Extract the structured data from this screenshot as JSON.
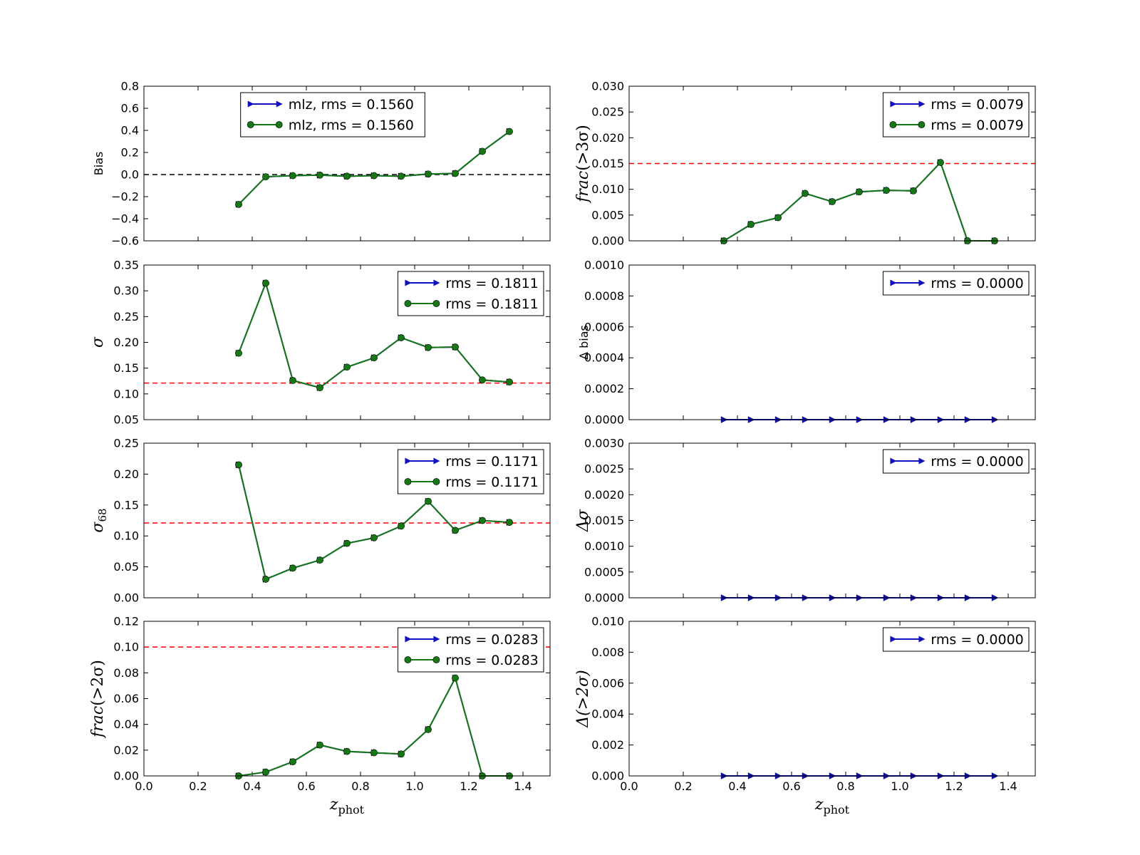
{
  "chart_data": [
    {
      "type": "line",
      "ylabel": "Bias",
      "ylim": [
        -0.6,
        0.8
      ],
      "yticks": [
        "−0.6",
        "−0.4",
        "−0.2",
        "0.0",
        "0.2",
        "0.4",
        "0.6",
        "0.8"
      ],
      "reference_line": {
        "y": 0.0,
        "color": "#000000",
        "style": "dashed"
      },
      "legend_position": "upper-center",
      "series": [
        {
          "name": "mlz, rms = 0.1560",
          "color": "#1010c0",
          "marker": "triangle-right",
          "x": [
            0.35,
            0.45,
            0.55,
            0.65,
            0.75,
            0.85,
            0.95,
            1.05,
            1.15,
            1.25,
            1.35
          ],
          "y": [
            -0.27,
            -0.02,
            -0.01,
            -0.005,
            -0.015,
            -0.01,
            -0.015,
            0.005,
            0.01,
            0.21,
            0.39
          ]
        },
        {
          "name": "mlz, rms = 0.1560",
          "color": "#157815",
          "marker": "circle",
          "x": [
            0.35,
            0.45,
            0.55,
            0.65,
            0.75,
            0.85,
            0.95,
            1.05,
            1.15,
            1.25,
            1.35
          ],
          "y": [
            -0.27,
            -0.02,
            -0.01,
            -0.005,
            -0.015,
            -0.01,
            -0.015,
            0.005,
            0.01,
            0.21,
            0.39
          ]
        }
      ]
    },
    {
      "type": "line",
      "ylabel": "frac(>3σ)",
      "ylim": [
        0.0,
        0.03
      ],
      "yticks": [
        "0.000",
        "0.005",
        "0.010",
        "0.015",
        "0.020",
        "0.025",
        "0.030"
      ],
      "reference_line": {
        "y": 0.015,
        "color": "#ff0000",
        "style": "dashed"
      },
      "legend_position": "upper-right",
      "series": [
        {
          "name": "rms = 0.0079",
          "color": "#1010c0",
          "marker": "triangle-right",
          "x": [
            0.35,
            0.45,
            0.55,
            0.65,
            0.75,
            0.85,
            0.95,
            1.05,
            1.15,
            1.25,
            1.35
          ],
          "y": [
            0.0,
            0.0032,
            0.0045,
            0.0092,
            0.0076,
            0.0095,
            0.0098,
            0.0097,
            0.0152,
            0.0,
            0.0
          ]
        },
        {
          "name": "rms = 0.0079",
          "color": "#157815",
          "marker": "circle",
          "x": [
            0.35,
            0.45,
            0.55,
            0.65,
            0.75,
            0.85,
            0.95,
            1.05,
            1.15,
            1.25,
            1.35
          ],
          "y": [
            0.0,
            0.0032,
            0.0045,
            0.0092,
            0.0076,
            0.0095,
            0.0098,
            0.0097,
            0.0152,
            0.0,
            0.0
          ]
        }
      ]
    },
    {
      "type": "line",
      "ylabel": "σ",
      "ylim": [
        0.05,
        0.35
      ],
      "yticks": [
        "0.05",
        "0.10",
        "0.15",
        "0.20",
        "0.25",
        "0.30",
        "0.35"
      ],
      "reference_line": {
        "y": 0.121,
        "color": "#ff0000",
        "style": "dashed"
      },
      "legend_position": "upper-right",
      "series": [
        {
          "name": "rms = 0.1811",
          "color": "#1010c0",
          "marker": "triangle-right",
          "x": [
            0.35,
            0.45,
            0.55,
            0.65,
            0.75,
            0.85,
            0.95,
            1.05,
            1.15,
            1.25,
            1.35
          ],
          "y": [
            0.179,
            0.315,
            0.126,
            0.112,
            0.152,
            0.17,
            0.209,
            0.19,
            0.191,
            0.127,
            0.123
          ]
        },
        {
          "name": "rms = 0.1811",
          "color": "#157815",
          "marker": "circle",
          "x": [
            0.35,
            0.45,
            0.55,
            0.65,
            0.75,
            0.85,
            0.95,
            1.05,
            1.15,
            1.25,
            1.35
          ],
          "y": [
            0.179,
            0.315,
            0.126,
            0.112,
            0.152,
            0.17,
            0.209,
            0.19,
            0.191,
            0.127,
            0.123
          ]
        }
      ]
    },
    {
      "type": "line",
      "ylabel": "Δ bias",
      "ylim": [
        0.0,
        0.001
      ],
      "yticks": [
        "0.0000",
        "0.0002",
        "0.0004",
        "0.0006",
        "0.0008",
        "0.0010"
      ],
      "legend_position": "upper-right",
      "series": [
        {
          "name": "rms = 0.0000",
          "color": "#1010c0",
          "marker": "triangle-right",
          "x": [
            0.35,
            0.45,
            0.55,
            0.65,
            0.75,
            0.85,
            0.95,
            1.05,
            1.15,
            1.25,
            1.35
          ],
          "y": [
            0,
            0,
            0,
            0,
            0,
            0,
            0,
            0,
            0,
            0,
            0
          ]
        }
      ]
    },
    {
      "type": "line",
      "ylabel": "σ68",
      "ylim": [
        0.0,
        0.25
      ],
      "yticks": [
        "0.00",
        "0.05",
        "0.10",
        "0.15",
        "0.20",
        "0.25"
      ],
      "reference_line": {
        "y": 0.121,
        "color": "#ff0000",
        "style": "dashed"
      },
      "legend_position": "upper-right",
      "series": [
        {
          "name": "rms = 0.1171",
          "color": "#1010c0",
          "marker": "triangle-right",
          "x": [
            0.35,
            0.45,
            0.55,
            0.65,
            0.75,
            0.85,
            0.95,
            1.05,
            1.15,
            1.25,
            1.35
          ],
          "y": [
            0.215,
            0.03,
            0.048,
            0.061,
            0.088,
            0.097,
            0.116,
            0.156,
            0.109,
            0.125,
            0.122
          ]
        },
        {
          "name": "rms = 0.1171",
          "color": "#157815",
          "marker": "circle",
          "x": [
            0.35,
            0.45,
            0.55,
            0.65,
            0.75,
            0.85,
            0.95,
            1.05,
            1.15,
            1.25,
            1.35
          ],
          "y": [
            0.215,
            0.03,
            0.048,
            0.061,
            0.088,
            0.097,
            0.116,
            0.156,
            0.109,
            0.125,
            0.122
          ]
        }
      ]
    },
    {
      "type": "line",
      "ylabel": "Δσ",
      "ylim": [
        0.0,
        0.003
      ],
      "yticks": [
        "0.0000",
        "0.0005",
        "0.0010",
        "0.0015",
        "0.0020",
        "0.0025",
        "0.0030"
      ],
      "legend_position": "upper-right",
      "series": [
        {
          "name": "rms = 0.0000",
          "color": "#1010c0",
          "marker": "triangle-right",
          "x": [
            0.35,
            0.45,
            0.55,
            0.65,
            0.75,
            0.85,
            0.95,
            1.05,
            1.15,
            1.25,
            1.35
          ],
          "y": [
            0,
            0,
            0,
            0,
            0,
            0,
            0,
            0,
            0,
            0,
            0
          ]
        }
      ]
    },
    {
      "type": "line",
      "ylabel": "frac(>2σ)",
      "xlabel": "zphot",
      "ylim": [
        0.0,
        0.12
      ],
      "yticks": [
        "0.00",
        "0.02",
        "0.04",
        "0.06",
        "0.08",
        "0.10",
        "0.12"
      ],
      "xticks": [
        "0.0",
        "0.2",
        "0.4",
        "0.6",
        "0.8",
        "1.0",
        "1.2",
        "1.4"
      ],
      "reference_line": {
        "y": 0.1,
        "color": "#ff0000",
        "style": "dashed"
      },
      "legend_position": "upper-right",
      "series": [
        {
          "name": "rms = 0.0283",
          "color": "#1010c0",
          "marker": "triangle-right",
          "x": [
            0.35,
            0.45,
            0.55,
            0.65,
            0.75,
            0.85,
            0.95,
            1.05,
            1.15,
            1.25,
            1.35
          ],
          "y": [
            0.0,
            0.003,
            0.011,
            0.024,
            0.019,
            0.018,
            0.017,
            0.036,
            0.076,
            0.0,
            0.0
          ]
        },
        {
          "name": "rms = 0.0283",
          "color": "#157815",
          "marker": "circle",
          "x": [
            0.35,
            0.45,
            0.55,
            0.65,
            0.75,
            0.85,
            0.95,
            1.05,
            1.15,
            1.25,
            1.35
          ],
          "y": [
            0.0,
            0.003,
            0.011,
            0.024,
            0.019,
            0.018,
            0.017,
            0.036,
            0.076,
            0.0,
            0.0
          ]
        }
      ]
    },
    {
      "type": "line",
      "ylabel": "Δ(>2σ)",
      "xlabel": "zphot",
      "ylim": [
        0.0,
        0.01
      ],
      "yticks": [
        "0.000",
        "0.002",
        "0.004",
        "0.006",
        "0.008",
        "0.010"
      ],
      "xticks": [
        "0.0",
        "0.2",
        "0.4",
        "0.6",
        "0.8",
        "1.0",
        "1.2",
        "1.4"
      ],
      "legend_position": "upper-right",
      "series": [
        {
          "name": "rms = 0.0000",
          "color": "#1010c0",
          "marker": "triangle-right",
          "x": [
            0.35,
            0.45,
            0.55,
            0.65,
            0.75,
            0.85,
            0.95,
            1.05,
            1.15,
            1.25,
            1.35
          ],
          "y": [
            0,
            0,
            0,
            0,
            0,
            0,
            0,
            0,
            0,
            0,
            0
          ]
        }
      ]
    }
  ],
  "shared": {
    "xlim": [
      0.0,
      1.5
    ],
    "grid": false
  }
}
